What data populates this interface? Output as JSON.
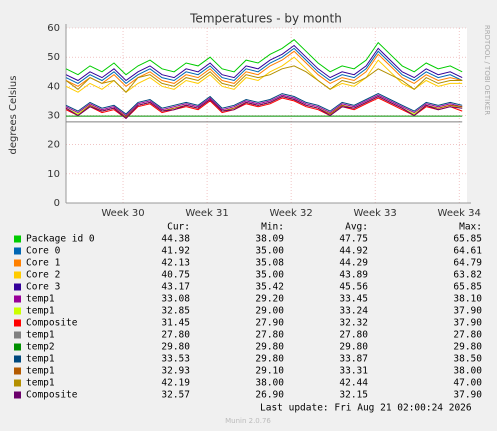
{
  "chart_data": {
    "type": "line",
    "title": "Temperatures - by month",
    "y_label": "degrees Celsius",
    "side_text": "RRDTOOL / TOBI OETIKER",
    "footer": "Last update: Fri Aug 21 02:00:24 2026",
    "version": "Munin 2.0.76",
    "grid": true,
    "x": [
      0,
      1,
      2,
      3,
      4,
      5,
      6,
      7,
      8,
      9,
      10,
      11,
      12,
      13,
      14,
      15,
      16,
      17,
      18,
      19,
      20,
      21,
      22,
      23,
      24,
      25,
      26,
      27,
      28,
      29,
      30,
      31,
      32,
      33
    ],
    "xlim": [
      0,
      33.4
    ],
    "xticks": [
      {
        "value": 4.75,
        "label": "Week 30"
      },
      {
        "value": 11.75,
        "label": "Week 31"
      },
      {
        "value": 18.75,
        "label": "Week 32"
      },
      {
        "value": 25.75,
        "label": "Week 33"
      },
      {
        "value": 32.75,
        "label": "Week 34"
      }
    ],
    "ylim": [
      0,
      60
    ],
    "yticks": [
      0,
      10,
      20,
      30,
      40,
      50,
      60
    ],
    "series": [
      {
        "name": "Package id 0",
        "color": "#00CC00",
        "values": [
          46,
          44,
          47,
          45,
          48,
          44,
          47,
          49,
          46,
          45,
          48,
          47,
          50,
          46,
          45,
          49,
          48,
          51,
          53,
          56,
          52,
          48,
          45,
          47,
          46,
          49,
          55,
          51,
          47,
          45,
          48,
          46,
          47,
          45
        ]
      },
      {
        "name": "Core 0",
        "color": "#0066B3",
        "values": [
          43,
          41,
          44,
          42,
          45,
          41,
          44,
          46,
          43,
          42,
          45,
          44,
          47,
          43,
          42,
          46,
          45,
          48,
          50,
          53,
          49,
          45,
          42,
          44,
          43,
          46,
          52,
          48,
          44,
          42,
          45,
          43,
          44,
          42
        ]
      },
      {
        "name": "Core 1",
        "color": "#FF8000",
        "values": [
          42,
          40,
          43,
          41,
          44,
          40,
          43,
          45,
          42,
          41,
          44,
          43,
          46,
          42,
          41,
          45,
          44,
          47,
          49,
          52,
          48,
          44,
          41,
          43,
          42,
          45,
          51,
          47,
          43,
          41,
          44,
          42,
          43,
          42
        ]
      },
      {
        "name": "Core 2",
        "color": "#FFCC00",
        "values": [
          40,
          38,
          41,
          39,
          42,
          38,
          41,
          43,
          40,
          39,
          42,
          41,
          44,
          40,
          39,
          43,
          42,
          45,
          47,
          50,
          46,
          42,
          39,
          41,
          40,
          43,
          49,
          45,
          41,
          39,
          42,
          40,
          41,
          41
        ]
      },
      {
        "name": "Core 3",
        "color": "#330099",
        "values": [
          44,
          42,
          45,
          43,
          46,
          42,
          45,
          47,
          44,
          43,
          46,
          45,
          48,
          44,
          43,
          47,
          46,
          49,
          51,
          54,
          50,
          46,
          43,
          45,
          44,
          47,
          53,
          49,
          45,
          43,
          46,
          44,
          45,
          43
        ]
      },
      {
        "name": "temp1",
        "color": "#990099",
        "values": [
          33,
          31,
          34,
          32,
          33,
          30,
          34,
          35,
          32,
          33,
          34,
          33,
          36,
          32,
          33,
          35,
          34,
          35,
          37,
          36,
          34,
          33,
          31,
          34,
          33,
          35,
          37,
          35,
          33,
          31,
          34,
          33,
          34,
          33
        ]
      },
      {
        "name": "temp1",
        "color": "#CCFF00",
        "values": [
          32.5,
          30.5,
          33.5,
          31.5,
          32.5,
          29.5,
          33.5,
          34.5,
          31.5,
          32.5,
          33.5,
          32.5,
          35.5,
          31.5,
          32.5,
          34.5,
          33.5,
          34.5,
          36.5,
          35.5,
          33.5,
          32.5,
          30.5,
          33.5,
          32.5,
          34.5,
          36.5,
          34.5,
          32.5,
          30.5,
          33.5,
          32.5,
          33.5,
          32.5
        ]
      },
      {
        "name": "Composite",
        "color": "#FF0000",
        "values": [
          32,
          30,
          33,
          31,
          32,
          29,
          33,
          34,
          31,
          32,
          33,
          32,
          35,
          31,
          32,
          34,
          33,
          34,
          36,
          35,
          33,
          32,
          30,
          33,
          32,
          34,
          36,
          34,
          32,
          30,
          33,
          32,
          33,
          31.5
        ]
      },
      {
        "name": "temp1",
        "color": "#808080",
        "values": [
          27.8,
          27.8,
          27.8,
          27.8,
          27.8,
          27.8,
          27.8,
          27.8,
          27.8,
          27.8,
          27.8,
          27.8,
          27.8,
          27.8,
          27.8,
          27.8,
          27.8,
          27.8,
          27.8,
          27.8,
          27.8,
          27.8,
          27.8,
          27.8,
          27.8,
          27.8,
          27.8,
          27.8,
          27.8,
          27.8,
          27.8,
          27.8,
          27.8,
          27.8
        ]
      },
      {
        "name": "temp2",
        "color": "#008F00",
        "values": [
          29.8,
          29.8,
          29.8,
          29.8,
          29.8,
          29.8,
          29.8,
          29.8,
          29.8,
          29.8,
          29.8,
          29.8,
          29.8,
          29.8,
          29.8,
          29.8,
          29.8,
          29.8,
          29.8,
          29.8,
          29.8,
          29.8,
          29.8,
          29.8,
          29.8,
          29.8,
          29.8,
          29.8,
          29.8,
          29.8,
          29.8,
          29.8,
          29.8,
          29.8
        ]
      },
      {
        "name": "temp1",
        "color": "#00487D",
        "values": [
          33.5,
          31.5,
          34.5,
          32.5,
          33.5,
          30.5,
          34.5,
          35.5,
          32.5,
          33.5,
          34.5,
          33.5,
          36.5,
          32.5,
          33.5,
          35.5,
          34.5,
          35.5,
          37.5,
          36.5,
          34.5,
          33.5,
          31.5,
          34.5,
          33.5,
          35.5,
          37.5,
          35.5,
          33.5,
          31.5,
          34.5,
          33.5,
          34.5,
          33.5
        ]
      },
      {
        "name": "temp1",
        "color": "#B35A00",
        "values": [
          32.5,
          30,
          33.5,
          31.5,
          32.5,
          29.5,
          33.5,
          34.5,
          31.5,
          32.5,
          33.5,
          32.5,
          35.5,
          31.5,
          32.5,
          34.5,
          33.5,
          34.5,
          36.5,
          35.5,
          33.5,
          32.5,
          30.5,
          33.5,
          32.5,
          34.5,
          36.5,
          34.5,
          32.5,
          30,
          33.5,
          32.5,
          33.5,
          33
        ]
      },
      {
        "name": "temp1",
        "color": "#B38F00",
        "values": [
          42,
          39,
          43,
          41,
          42,
          38,
          43,
          44,
          41,
          40,
          43,
          42,
          45,
          41,
          40,
          44,
          43,
          44,
          46,
          47,
          45,
          42,
          39,
          42,
          41,
          43,
          46,
          44,
          42,
          39,
          43,
          41,
          42,
          42
        ]
      },
      {
        "name": "Composite",
        "color": "#6B006B",
        "values": [
          32.5,
          30,
          33,
          31.5,
          32.5,
          29,
          33.5,
          34.5,
          31.5,
          32,
          33.5,
          32.5,
          35.5,
          31.5,
          32,
          34.5,
          33.5,
          34.5,
          36.5,
          35.5,
          33.5,
          32.5,
          30,
          33,
          32.5,
          34.5,
          36.5,
          34.5,
          32.5,
          30,
          33.5,
          32,
          33,
          32.5
        ]
      }
    ],
    "legend": {
      "columns": [
        "Cur:",
        "Min:",
        "Avg:",
        "Max:"
      ],
      "rows": [
        [
          "44.38",
          "38.09",
          "47.75",
          "65.85"
        ],
        [
          "41.92",
          "35.00",
          "44.92",
          "64.61"
        ],
        [
          "42.13",
          "35.08",
          "44.29",
          "64.79"
        ],
        [
          "40.75",
          "35.00",
          "43.89",
          "63.82"
        ],
        [
          "43.17",
          "35.42",
          "45.56",
          "65.85"
        ],
        [
          "33.08",
          "29.20",
          "33.45",
          "38.10"
        ],
        [
          "32.85",
          "29.00",
          "33.24",
          "37.90"
        ],
        [
          "31.45",
          "27.90",
          "32.32",
          "37.90"
        ],
        [
          "27.80",
          "27.80",
          "27.80",
          "27.80"
        ],
        [
          "29.80",
          "29.80",
          "29.80",
          "29.80"
        ],
        [
          "33.53",
          "29.80",
          "33.87",
          "38.50"
        ],
        [
          "32.93",
          "29.10",
          "33.31",
          "38.00"
        ],
        [
          "42.19",
          "38.00",
          "42.44",
          "47.00"
        ],
        [
          "32.57",
          "26.90",
          "32.15",
          "37.90"
        ]
      ]
    }
  }
}
